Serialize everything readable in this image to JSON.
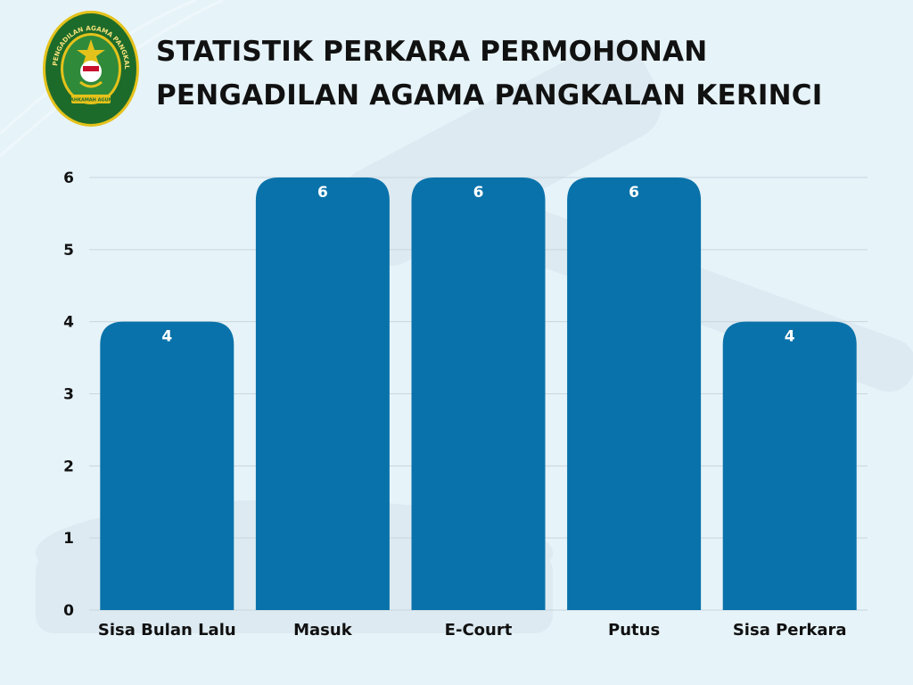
{
  "header": {
    "title_line1": "STATISTIK PERKARA PERMOHONAN",
    "title_line2": "PENGADILAN AGAMA PANGKALAN KERINCI"
  },
  "logo": {
    "icon": "pengadilan-agama-emblem-icon",
    "ring_text": "PENGADILAN AGAMA PANGKALAN KERINCI",
    "banner_text": "MAHKAMAH AGUNG",
    "colors": {
      "ring": "#1d6b2a",
      "gold": "#e5c21b",
      "inner": "#2f8a3a"
    }
  },
  "chart_data": {
    "type": "bar",
    "categories": [
      "Sisa Bulan Lalu",
      "Masuk",
      "E-Court",
      "Putus",
      "Sisa Perkara"
    ],
    "values": [
      4,
      6,
      6,
      6,
      4
    ],
    "data_labels": [
      "4",
      "6",
      "6",
      "6",
      "4"
    ],
    "yticks": [
      "0",
      "1",
      "2",
      "3",
      "4",
      "5",
      "6"
    ],
    "ylim": [
      0,
      6
    ],
    "grid": true,
    "legend": "none",
    "bar_color": "#0a72aa",
    "label_color": "#ffffff"
  }
}
